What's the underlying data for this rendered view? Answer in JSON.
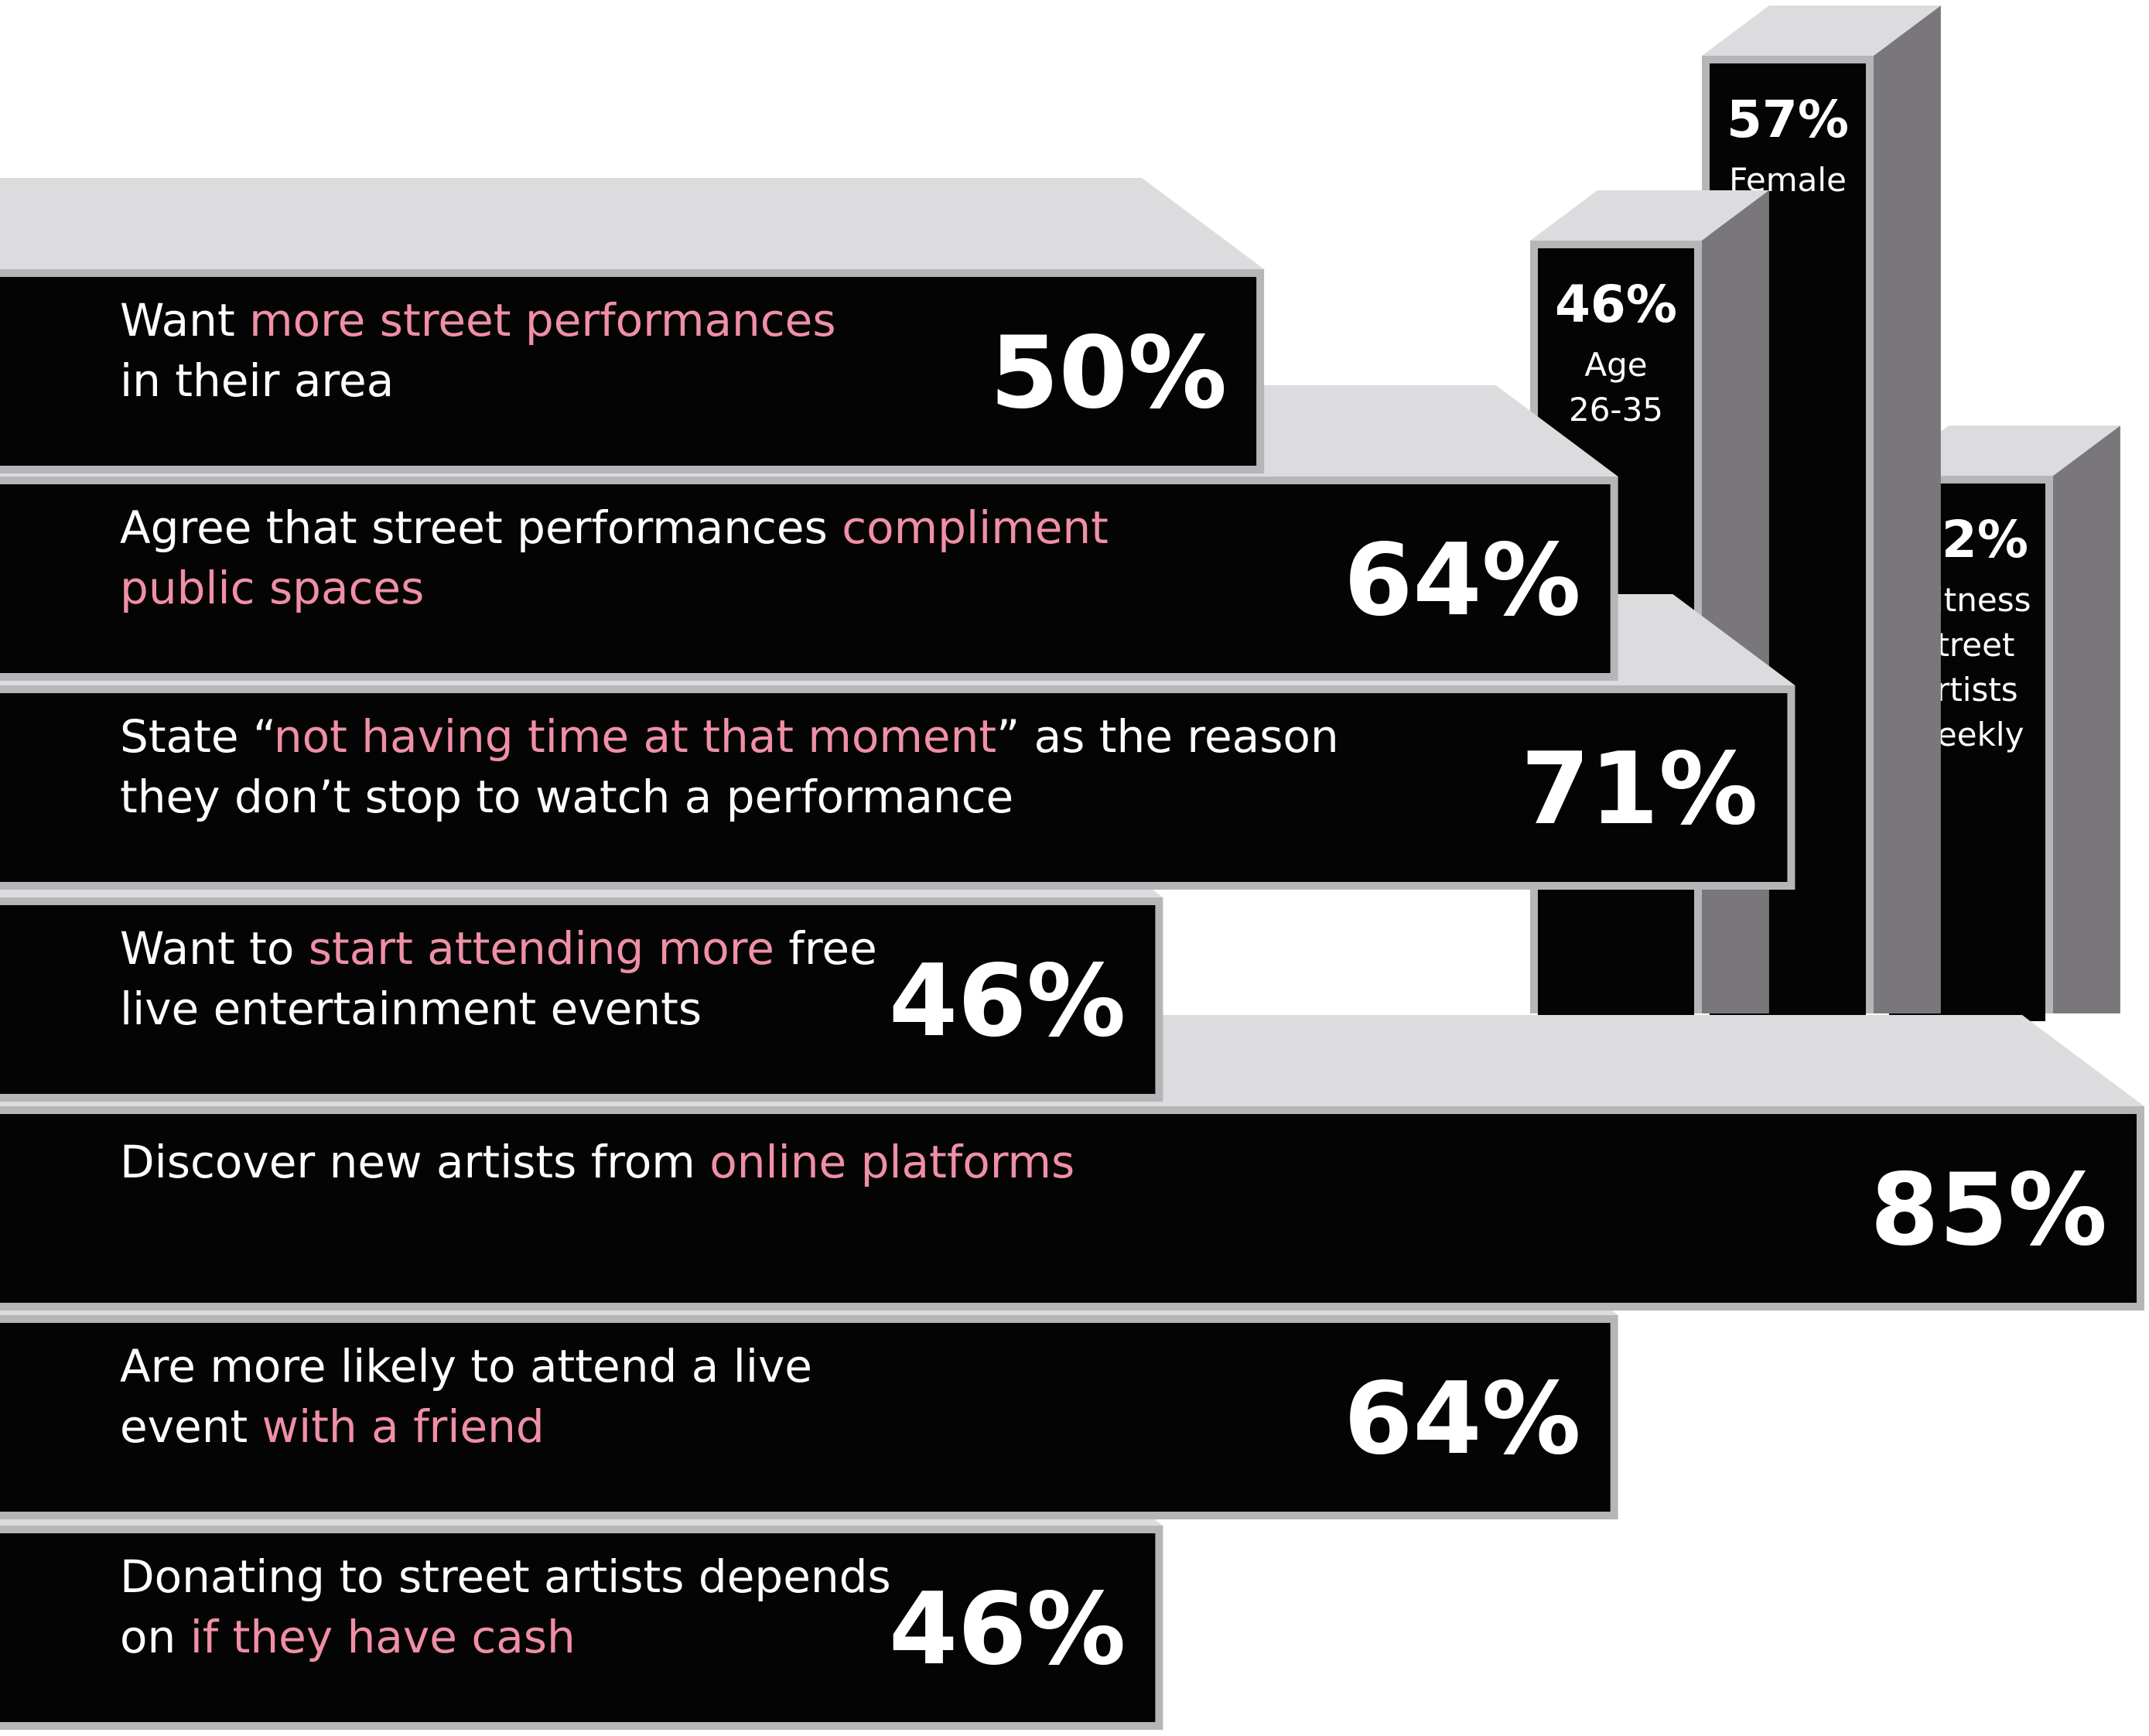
{
  "colors": {
    "bar_face": "#050405",
    "bar_edge": "#b6b5b8",
    "bar_top": "#dcdbde",
    "bar_side": "#7a777b",
    "text": "#ffffff",
    "highlight": "#f08fa6",
    "background": "#ffffff"
  },
  "chart_data": [
    {
      "type": "bar",
      "orientation": "horizontal",
      "style": "3d-block",
      "bars": [
        {
          "label": "Want more street performances in their area",
          "value": 50,
          "value_label": "50%",
          "lines": [
            [
              {
                "text": "Want ",
                "hl": false
              },
              {
                "text": "more street performances",
                "hl": true
              }
            ],
            [
              {
                "text": "in their area",
                "hl": false
              }
            ]
          ]
        },
        {
          "label": "Agree that street performances compliment public spaces",
          "value": 64,
          "value_label": "64%",
          "lines": [
            [
              {
                "text": "Agree that street performances ",
                "hl": false
              },
              {
                "text": "compliment",
                "hl": true
              }
            ],
            [
              {
                "text": "public spaces",
                "hl": true
              }
            ]
          ]
        },
        {
          "label": "State “not having time at that moment” as the reason they don’t stop to watch a performance",
          "value": 71,
          "value_label": "71%",
          "lines": [
            [
              {
                "text": "State “",
                "hl": false
              },
              {
                "text": "not having time at that moment",
                "hl": true
              },
              {
                "text": "” as the reason",
                "hl": false
              }
            ],
            [
              {
                "text": "they don’t stop to watch a performance",
                "hl": false
              }
            ]
          ]
        },
        {
          "label": "Want to start attending more free live entertainment events",
          "value": 46,
          "value_label": "46%",
          "lines": [
            [
              {
                "text": "Want to ",
                "hl": false
              },
              {
                "text": "start attending more",
                "hl": true
              },
              {
                "text": " free",
                "hl": false
              }
            ],
            [
              {
                "text": "live entertainment events",
                "hl": false
              }
            ]
          ]
        },
        {
          "label": "Discover new artists from online platforms",
          "value": 85,
          "value_label": "85%",
          "lines": [
            [
              {
                "text": "Discover new artists from ",
                "hl": false
              },
              {
                "text": "online platforms",
                "hl": true
              }
            ]
          ]
        },
        {
          "label": "Are more likely to attend a live event with a friend",
          "value": 64,
          "value_label": "64%",
          "lines": [
            [
              {
                "text": "Are more likely to attend a live",
                "hl": false
              }
            ],
            [
              {
                "text": "event ",
                "hl": false
              },
              {
                "text": "with a friend",
                "hl": true
              }
            ]
          ]
        },
        {
          "label": "Donating to street artists depends on if they have cash",
          "value": 46,
          "value_label": "46%",
          "lines": [
            [
              {
                "text": "Donating to street artists depends",
                "hl": false
              }
            ],
            [
              {
                "text": "on ",
                "hl": false
              },
              {
                "text": "if they have cash",
                "hl": true
              }
            ]
          ]
        }
      ]
    },
    {
      "type": "bar",
      "orientation": "vertical",
      "style": "3d-block",
      "bars": [
        {
          "value": 46,
          "value_label": "46%",
          "lines": [
            "Age",
            "26-35"
          ]
        },
        {
          "value": 57,
          "value_label": "57%",
          "lines": [
            "Female"
          ]
        },
        {
          "value": 32,
          "value_label": "32%",
          "lines": [
            "Witness",
            "street",
            "artists",
            "weekly"
          ]
        }
      ]
    }
  ]
}
